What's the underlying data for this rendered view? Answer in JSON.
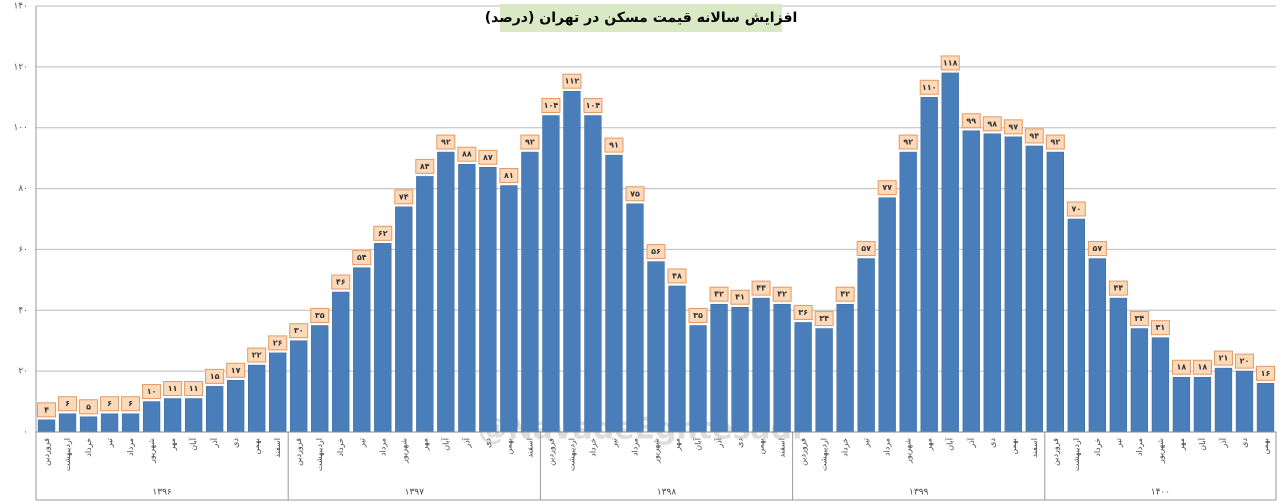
{
  "chart_data": {
    "type": "bar",
    "title": "افزایش سالانه قیمت مسکن در تهران (درصد)",
    "watermark": "@NavadeEghtesadi",
    "color": "#4a7ebb",
    "ylim": [
      0,
      140
    ],
    "yticks": [
      {
        "value": 0,
        "label": "۰"
      },
      {
        "value": 20,
        "label": "۲۰"
      },
      {
        "value": 40,
        "label": "۴۰"
      },
      {
        "value": 60,
        "label": "۶۰"
      },
      {
        "value": 80,
        "label": "۸۰"
      },
      {
        "value": 100,
        "label": "۱۰۰"
      },
      {
        "value": 120,
        "label": "۱۲۰"
      },
      {
        "value": 140,
        "label": "۱۴۰"
      }
    ],
    "grid": true,
    "groups": [
      {
        "name": "۱۳۹۶",
        "categories": [
          "فروردین",
          "اردیبهشت",
          "خرداد",
          "تیر",
          "مرداد",
          "شهریور",
          "مهر",
          "آبان",
          "آذر",
          "دی",
          "بهمن",
          "اسفند"
        ],
        "values": [
          4,
          6,
          5,
          6,
          6,
          10,
          11,
          11,
          15,
          17,
          22,
          26
        ],
        "value_labels": [
          "۴",
          "۶",
          "۵",
          "۶",
          "۶",
          "۱۰",
          "۱۱",
          "۱۱",
          "۱۵",
          "۱۷",
          "۲۲",
          "۲۶"
        ]
      },
      {
        "name": "۱۳۹۷",
        "categories": [
          "فروردین",
          "اردیبهشت",
          "خرداد",
          "تیر",
          "مرداد",
          "شهریور",
          "مهر",
          "آبان",
          "آذر",
          "دی",
          "بهمن",
          "اسفند"
        ],
        "values": [
          30,
          35,
          46,
          54,
          62,
          74,
          84,
          92,
          88,
          87,
          81,
          92
        ],
        "value_labels": [
          "۳۰",
          "۳۵",
          "۴۶",
          "۵۴",
          "۶۲",
          "۷۴",
          "۸۴",
          "۹۲",
          "۸۸",
          "۸۷",
          "۸۱",
          "۹۲"
        ]
      },
      {
        "name": "۱۳۹۸",
        "categories": [
          "فروردین",
          "اردیبهشت",
          "خرداد",
          "تیر",
          "مرداد",
          "شهریور",
          "مهر",
          "آبان",
          "آذر",
          "دی",
          "بهمن",
          "اسفند"
        ],
        "values": [
          104,
          112,
          104,
          91,
          75,
          56,
          48,
          35,
          42,
          41,
          44,
          42
        ],
        "value_labels": [
          "۱۰۴",
          "۱۱۲",
          "۱۰۴",
          "۹۱",
          "۷۵",
          "۵۶",
          "۴۸",
          "۳۵",
          "۴۲",
          "۴۱",
          "۴۴",
          "۴۲"
        ]
      },
      {
        "name": "۱۳۹۹",
        "categories": [
          "فروردین",
          "اردیبهشت",
          "خرداد",
          "تیر",
          "مرداد",
          "شهریور",
          "مهر",
          "آبان",
          "آذر",
          "دی",
          "بهمن",
          "اسفند"
        ],
        "values": [
          36,
          34,
          42,
          57,
          77,
          92,
          110,
          118,
          99,
          98,
          97,
          94
        ],
        "value_labels": [
          "۳۶",
          "۳۴",
          "۴۲",
          "۵۷",
          "۷۷",
          "۹۲",
          "۱۱۰",
          "۱۱۸",
          "۹۹",
          "۹۸",
          "۹۷",
          "۹۴"
        ]
      },
      {
        "name": "۱۴۰۰",
        "categories": [
          "فروردین",
          "اردیبهشت",
          "خرداد",
          "تیر",
          "مرداد",
          "شهریور",
          "مهر",
          "آبان",
          "آذر",
          "دی",
          "بهمن"
        ],
        "values": [
          92,
          70,
          57,
          44,
          34,
          31,
          18,
          18,
          21,
          20,
          16
        ],
        "value_labels": [
          "۹۲",
          "۷۰",
          "۵۷",
          "۴۴",
          "۳۴",
          "۳۱",
          "۱۸",
          "۱۸",
          "۲۱",
          "۲۰",
          "۱۶"
        ]
      }
    ]
  }
}
